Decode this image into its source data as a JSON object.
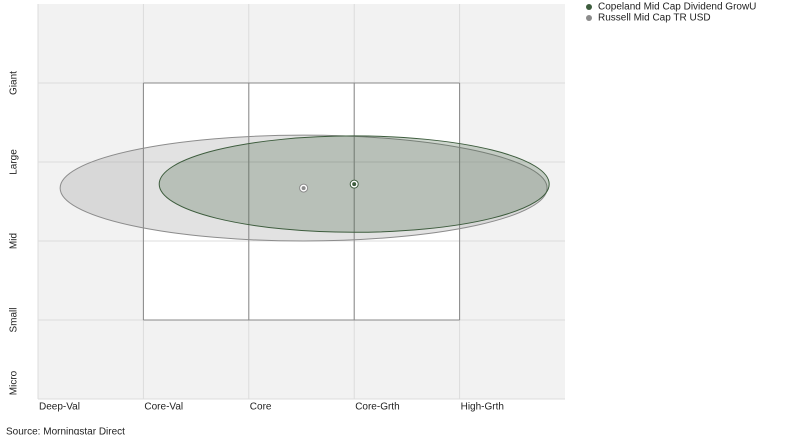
{
  "chart_data": {
    "type": "ownership-zone",
    "source": "Source: Morningstar Direct",
    "xlim": [
      0,
      5
    ],
    "xticks": [
      {
        "value": 0,
        "label": "Deep-Val"
      },
      {
        "value": 1,
        "label": "Core-Val"
      },
      {
        "value": 2,
        "label": "Core"
      },
      {
        "value": 3,
        "label": "Core-Grth"
      },
      {
        "value": 4,
        "label": "High-Grth"
      }
    ],
    "ylim": [
      0,
      5
    ],
    "yticks": [
      {
        "value": 0,
        "label": "Micro"
      },
      {
        "value": 1,
        "label": "Small"
      },
      {
        "value": 2,
        "label": "Mid"
      },
      {
        "value": 3,
        "label": "Large"
      },
      {
        "value": 4,
        "label": "Giant"
      }
    ],
    "grid": true,
    "legend": "top-right",
    "series": [
      {
        "name": "Copeland Mid Cap Dividend GrowU",
        "color": "#3d5c3d",
        "x": 3.0,
        "y": 2.72,
        "rx": 1.85,
        "ry": 0.61
      },
      {
        "name": "Russell Mid Cap TR USD",
        "color": "#8c8c8c",
        "x": 2.52,
        "y": 2.67,
        "rx": 2.31,
        "ry": 0.67
      }
    ]
  }
}
